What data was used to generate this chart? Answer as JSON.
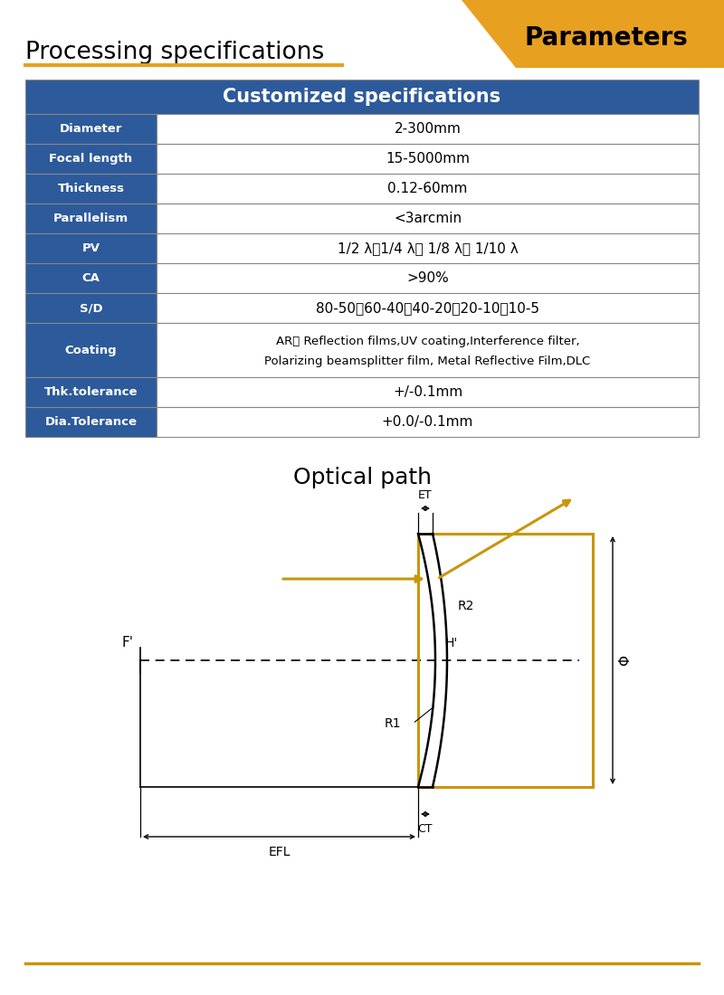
{
  "title_left": "Processing specifications",
  "title_right": "Parameters",
  "banner_color": "#E8A020",
  "underline_color": "#E8A020",
  "table_header": "Customized specifications",
  "table_header_bg": "#2D5A9B",
  "table_header_fg": "#FFFFFF",
  "row_label_bg": "#2D5A9B",
  "row_label_fg": "#FFFFFF",
  "row_value_bg": "#FFFFFF",
  "row_value_fg": "#000000",
  "table_border_color": "#888888",
  "rows": [
    [
      "Diameter",
      "2-300mm"
    ],
    [
      "Focal length",
      "15-5000mm"
    ],
    [
      "Thickness",
      "0.12-60mm"
    ],
    [
      "Parallelism",
      "<3arcmin"
    ],
    [
      "PV",
      "1/2 λ、1/4 λ、 1/8 λ、 1/10 λ"
    ],
    [
      "CA",
      ">90%"
    ],
    [
      "S/D",
      "80-50、60-40、40-20、20-10、10-5"
    ],
    [
      "Coating",
      "AR、 Reflection films,UV coating,Interference filter,\nPolarizing beamsplitter film, Metal Reflective Film,DLC"
    ],
    [
      "Thk.tolerance",
      "+/-0.1mm"
    ],
    [
      "Dia.Tolerance",
      "+0.0/-0.1mm"
    ]
  ],
  "optical_path_title": "Optical path",
  "lens_color": "#000000",
  "lens_gold_color": "#C8960C",
  "ray_color": "#C8960C",
  "dim_color": "#000000",
  "bg_color": "#FFFFFF",
  "footer_line_color": "#C8960C"
}
